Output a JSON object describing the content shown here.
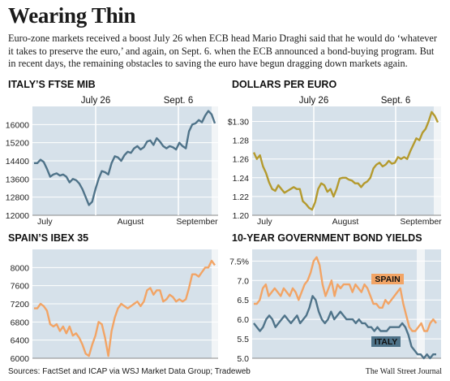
{
  "headline": "Wearing Thin",
  "intro": "Euro-zone markets received a boost July 26 when ECB head Mario Draghi said that he would do ‘whatever it takes to preserve the euro,’ and again, on Sept. 6. when the ECB announced a bond-buying program. But in recent days, the remaining obstacles to saving the euro have begun dragging down markets again.",
  "source": "Sources: FactSet and ICAP via WSJ Market Data Group; Tradeweb",
  "credit": "The Wall Street Journal",
  "colors": {
    "panel": "#d6e1ea",
    "blue": "#4f7389",
    "gold": "#b49a2e",
    "orange": "#f2a465",
    "tail": "#f2f5f7",
    "rule": "#8a8a8a"
  },
  "chart_data": [
    {
      "type": "line",
      "title": "ITALY’S FTSE MIB",
      "annotations": [
        "July 26",
        "Sept. 6"
      ],
      "x_labels": [
        "July",
        "August",
        "September"
      ],
      "yticks": [
        "16000",
        "15200",
        "14400",
        "13600",
        "12800",
        "12000"
      ],
      "ylim": [
        12000,
        16800
      ],
      "series": [
        {
          "values": [
            14300,
            14300,
            14450,
            14350,
            14050,
            13700,
            13800,
            13850,
            13750,
            13800,
            13700,
            13450,
            13600,
            13550,
            13400,
            13150,
            12800,
            12450,
            12600,
            13150,
            13600,
            13950,
            13900,
            13800,
            14300,
            14600,
            14550,
            14400,
            14650,
            14800,
            14750,
            14950,
            15050,
            14900,
            15000,
            15250,
            15300,
            15100,
            15400,
            15250,
            15050,
            14950,
            15050,
            15000,
            14900,
            15200,
            15050,
            14950,
            15700,
            16000,
            16050,
            16200,
            16100,
            16400,
            16600,
            16450,
            16050
          ]
        }
      ]
    },
    {
      "type": "line",
      "title": "DOLLARS PER EURO",
      "annotations": [
        "July 26",
        "Sept. 6"
      ],
      "x_labels": [
        "July",
        "August",
        "September"
      ],
      "yticks": [
        "$1.30",
        "1.28",
        "1.26",
        "1.24",
        "1.22",
        "1.20"
      ],
      "ylim": [
        1.2,
        1.316
      ],
      "series": [
        {
          "values": [
            1.267,
            1.26,
            1.264,
            1.252,
            1.245,
            1.235,
            1.228,
            1.226,
            1.232,
            1.228,
            1.224,
            1.226,
            1.228,
            1.23,
            1.228,
            1.228,
            1.215,
            1.212,
            1.208,
            1.206,
            1.214,
            1.228,
            1.234,
            1.232,
            1.225,
            1.228,
            1.22,
            1.228,
            1.239,
            1.24,
            1.24,
            1.238,
            1.237,
            1.234,
            1.234,
            1.23,
            1.234,
            1.236,
            1.24,
            1.25,
            1.254,
            1.256,
            1.252,
            1.254,
            1.258,
            1.255,
            1.256,
            1.262,
            1.26,
            1.262,
            1.26,
            1.268,
            1.275,
            1.282,
            1.28,
            1.288,
            1.292,
            1.3,
            1.31,
            1.306,
            1.299
          ]
        }
      ]
    },
    {
      "type": "line",
      "title": "SPAIN’S IBEX 35",
      "x_labels": [
        "July",
        "August",
        "September"
      ],
      "yticks": [
        "8000",
        "7600",
        "7200",
        "6800",
        "6400",
        "6000"
      ],
      "ylim": [
        6000,
        8400
      ],
      "series": [
        {
          "values": [
            7100,
            7100,
            7200,
            7150,
            7050,
            6750,
            6700,
            6750,
            6600,
            6700,
            6550,
            6700,
            6500,
            6550,
            6450,
            6300,
            6100,
            6050,
            6300,
            6500,
            6800,
            6750,
            6450,
            6050,
            6600,
            6900,
            7100,
            7200,
            7150,
            7100,
            7150,
            7200,
            7250,
            7150,
            7250,
            7500,
            7550,
            7400,
            7500,
            7500,
            7250,
            7300,
            7400,
            7350,
            7250,
            7300,
            7250,
            7300,
            7550,
            7850,
            7850,
            7800,
            7900,
            8000,
            8000,
            8150,
            8050
          ]
        }
      ]
    },
    {
      "type": "line",
      "title": "10-YEAR GOVERNMENT BOND YIELDS",
      "legend": [
        "SPAIN",
        "ITALY"
      ],
      "yticks": [
        "7.5%",
        "7.0",
        "6.5",
        "6.0",
        "5.5",
        "5.0"
      ],
      "ylim": [
        5.0,
        7.8
      ],
      "series": [
        {
          "name": "SPAIN",
          "values": [
            6.4,
            6.4,
            6.5,
            6.8,
            6.9,
            6.6,
            6.7,
            6.8,
            6.7,
            6.6,
            6.8,
            6.7,
            6.6,
            6.8,
            6.7,
            6.5,
            6.7,
            6.9,
            7.0,
            7.2,
            7.5,
            7.6,
            7.4,
            6.9,
            6.6,
            6.8,
            7.0,
            6.6,
            6.9,
            6.8,
            6.9,
            6.9,
            6.9,
            6.7,
            6.9,
            6.8,
            6.7,
            6.9,
            6.8,
            6.6,
            6.4,
            6.4,
            6.3,
            6.3,
            6.5,
            6.4,
            6.5,
            6.6,
            6.7,
            6.8,
            6.4,
            6.1,
            5.8,
            5.7,
            5.7,
            5.8,
            5.9,
            5.7,
            5.7,
            5.9,
            6.0,
            5.9
          ]
        },
        {
          "name": "ITALY",
          "values": [
            5.9,
            5.8,
            5.7,
            5.8,
            6.0,
            6.1,
            6.0,
            5.8,
            5.9,
            6.0,
            6.1,
            6.0,
            5.9,
            6.0,
            6.1,
            5.9,
            6.0,
            6.1,
            6.3,
            6.6,
            6.5,
            6.2,
            6.0,
            5.9,
            6.0,
            6.2,
            6.0,
            6.1,
            6.2,
            6.1,
            6.0,
            6.0,
            6.0,
            5.9,
            6.0,
            5.9,
            5.9,
            5.8,
            5.8,
            5.7,
            5.8,
            5.7,
            5.7,
            5.7,
            5.8,
            5.8,
            5.8,
            5.8,
            5.9,
            5.8,
            5.6,
            5.3,
            5.2,
            5.1,
            5.1,
            5.0,
            5.1,
            5.0,
            5.1,
            5.1
          ]
        }
      ]
    }
  ]
}
